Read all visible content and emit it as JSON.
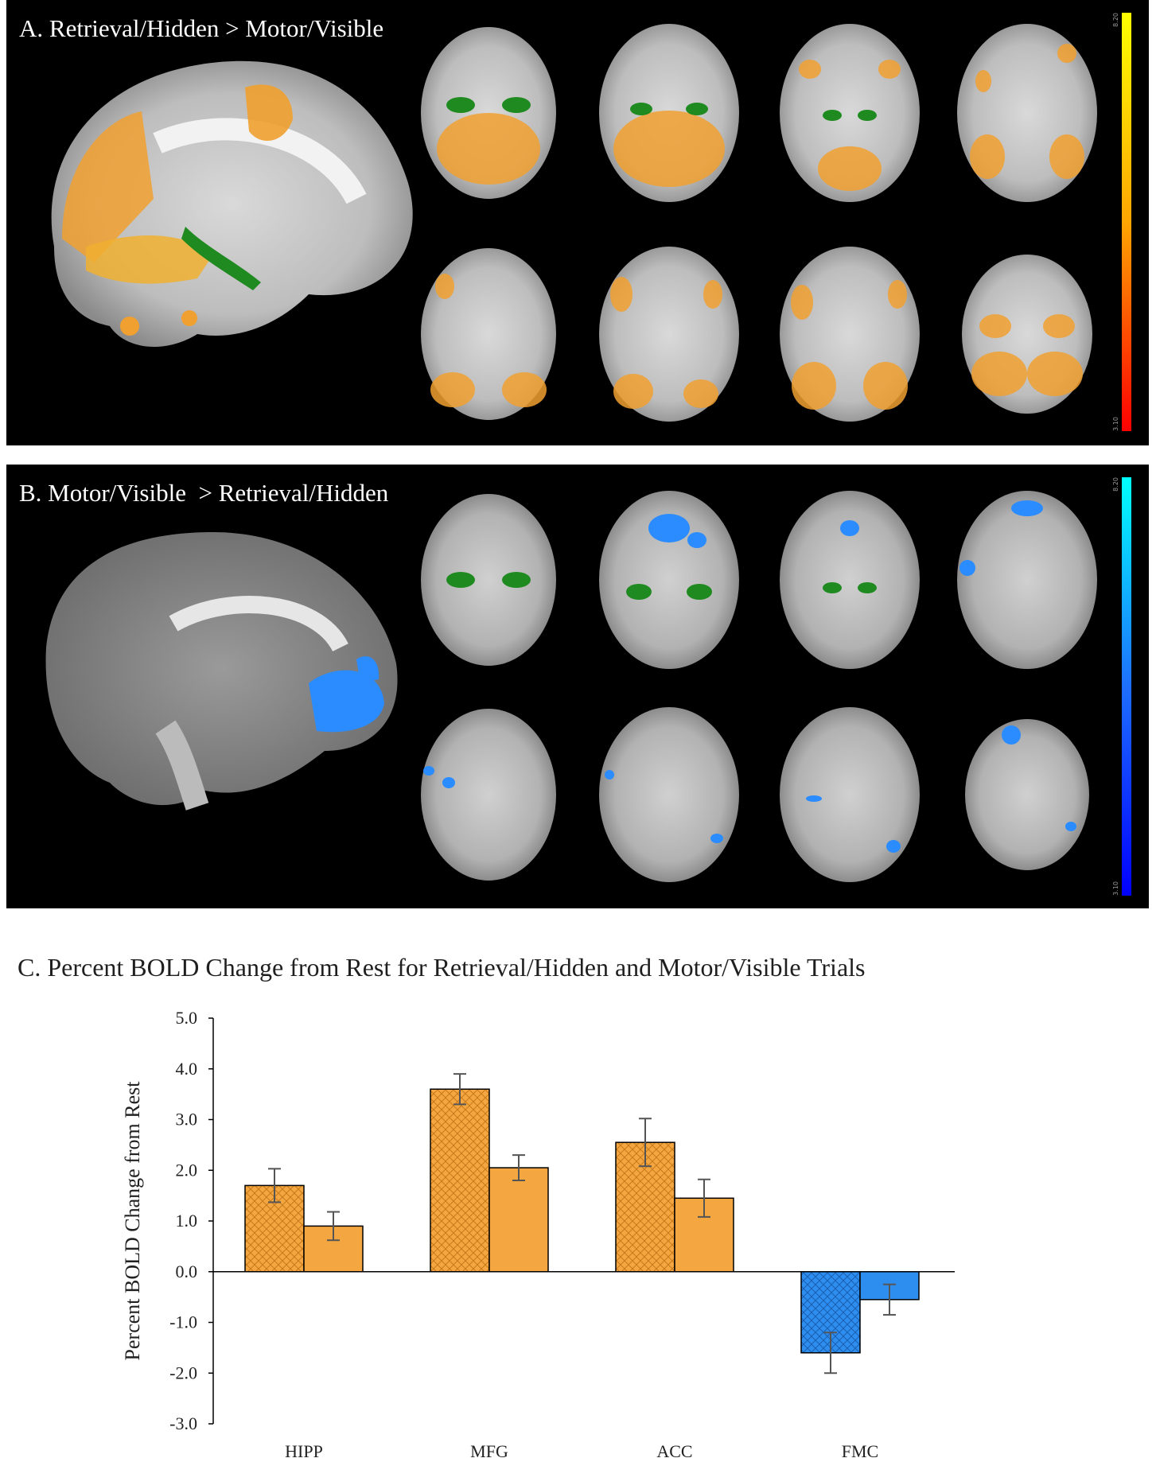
{
  "panel_a": {
    "title": "A. Retrieval/Hidden > Motor/Visible",
    "colorbar": {
      "top_label": "8.20",
      "bottom_label": "3.10",
      "gradient": [
        "#ffff00",
        "#ffa500",
        "#ff0000"
      ]
    },
    "overlay_color": "#f0a030",
    "mask_color": "#1f8a1f"
  },
  "panel_b": {
    "title": "B. Motor/Visible  > Retrieval/Hidden",
    "colorbar": {
      "top_label": "8.20",
      "bottom_label": "3.10",
      "gradient": [
        "#00ffff",
        "#1e6fff",
        "#0000ff"
      ]
    },
    "overlay_color": "#2a8cff",
    "mask_color": "#1f8a1f"
  },
  "chart_title": "C. Percent BOLD Change from Rest for Retrieval/Hidden and Motor/Visible Trials",
  "chart_data": {
    "type": "bar",
    "title": "C. Percent BOLD Change from Rest for Retrieval/Hidden and Motor/Visible Trials",
    "ylabel": "Percent BOLD Change from Rest",
    "xlabel": "",
    "ylim": [
      -3.0,
      5.0
    ],
    "yticks": [
      "5.0",
      "4.0",
      "3.0",
      "2.0",
      "1.0",
      "0.0",
      "-1.0",
      "-2.0",
      "-3.0"
    ],
    "ytick_values": [
      5,
      4,
      3,
      2,
      1,
      0,
      -1,
      -2,
      -3
    ],
    "categories": [
      "HIPP",
      "MFG",
      "ACC",
      "FMC"
    ],
    "series": [
      {
        "pattern": "hatched",
        "values": [
          1.7,
          3.6,
          2.55,
          -1.6
        ],
        "errors": [
          0.33,
          0.3,
          0.47,
          0.4
        ]
      },
      {
        "pattern": "solid",
        "values": [
          0.9,
          2.05,
          1.45,
          -0.55
        ],
        "errors": [
          0.28,
          0.25,
          0.37,
          0.3
        ]
      }
    ],
    "category_colors": [
      "#f4a640",
      "#f4a640",
      "#f4a640",
      "#2e8ef0"
    ],
    "grid": false
  }
}
